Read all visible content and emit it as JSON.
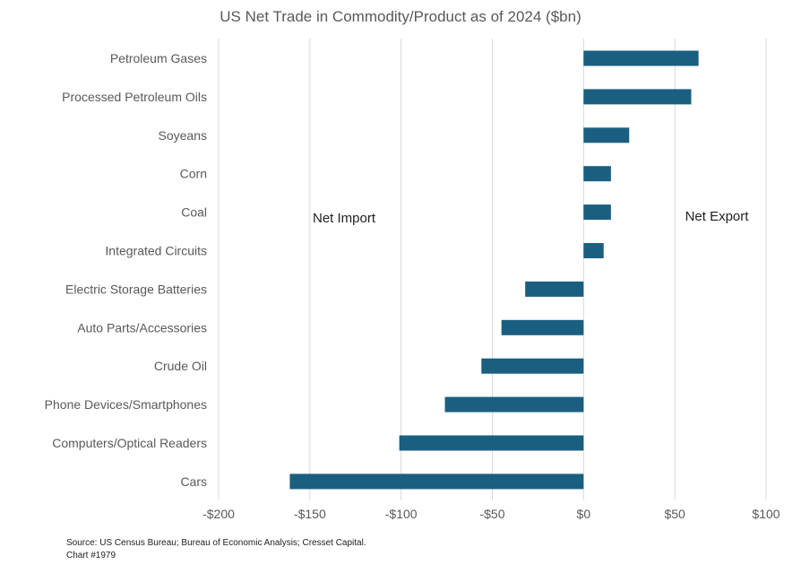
{
  "chart_data": {
    "type": "bar",
    "orientation": "horizontal",
    "title": "US Net Trade in Commodity/Product as of 2024 ($bn)",
    "categories": [
      "Petroleum Gases",
      "Processed Petroleum Oils",
      "Soyeans",
      "Corn",
      "Coal",
      "Integrated Circuits",
      "Electric Storage Batteries",
      "Auto Parts/Accessories",
      "Crude Oil",
      "Phone Devices/Smartphones",
      "Computers/Optical Readers",
      "Cars"
    ],
    "values": [
      63,
      59,
      25,
      15,
      15,
      11,
      -32,
      -45,
      -56,
      -76,
      -101,
      -161
    ],
    "xlim": [
      -200,
      100
    ],
    "xticks": [
      -200,
      -150,
      -100,
      -50,
      0,
      50,
      100
    ],
    "xtick_labels": [
      "-$200",
      "-$150",
      "-$100",
      "-$50",
      "$0",
      "$50",
      "$100"
    ],
    "annotations": [
      "Net Import",
      "Net Export"
    ],
    "grid": "vertical",
    "legend": "none",
    "bar_color": "#1a5f80",
    "grid_color": "#d9d9d9"
  },
  "footer": {
    "source": "Source: US Census Bureau; Bureau of Economic Analysis; Cresset Capital.",
    "chart_number": "Chart #1979"
  }
}
